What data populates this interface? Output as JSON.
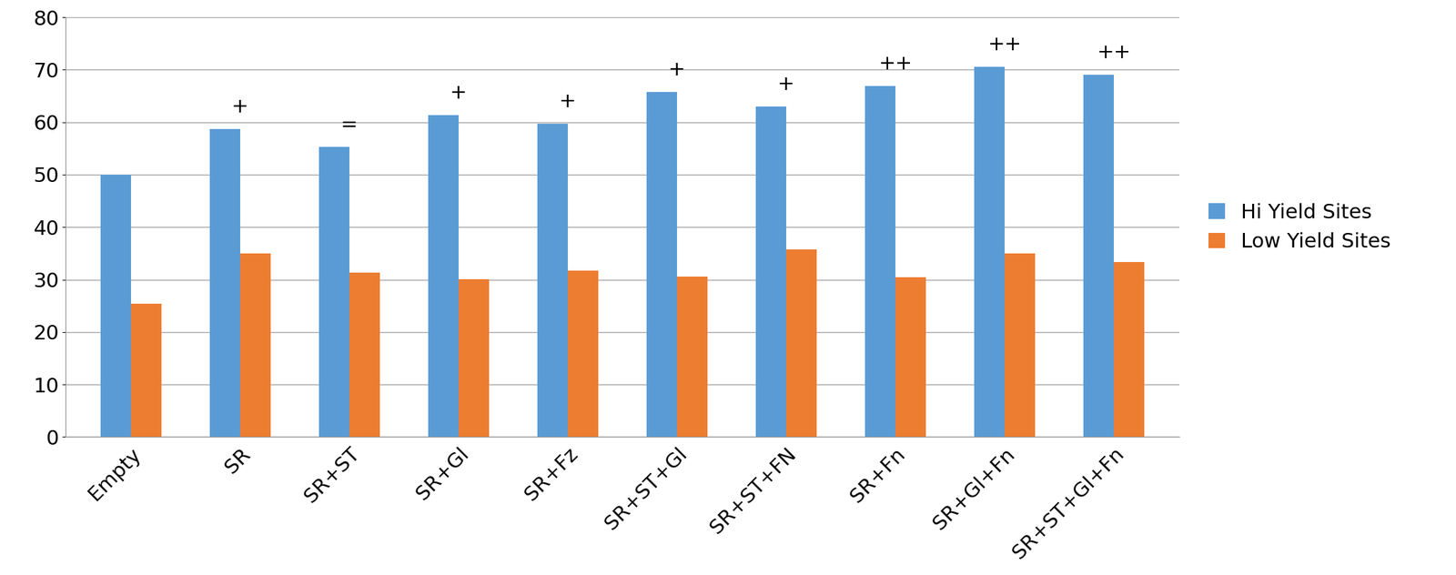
{
  "chart_data": {
    "type": "bar",
    "categories": [
      "Empty",
      "SR",
      "SR+ST",
      "SR+Gl",
      "SR+Fz",
      "SR+ST+Gl",
      "SR+ST+FN",
      "SR+Fn",
      "SR+Gl+Fn",
      "SR+ST+Gl+Fn"
    ],
    "series": [
      {
        "name": "Hi Yield Sites",
        "color": "#5b9bd5",
        "values": [
          50,
          58.7,
          55.3,
          61.4,
          59.7,
          65.8,
          63,
          66.9,
          70.5,
          69
        ]
      },
      {
        "name": "Low Yield Sites",
        "color": "#ed7d31",
        "values": [
          25.4,
          35,
          31.3,
          30.1,
          31.7,
          30.6,
          35.7,
          30.5,
          35,
          33.4
        ]
      }
    ],
    "annotations": [
      null,
      "+",
      "=",
      "+",
      "+",
      "+",
      "+",
      "++",
      "++",
      "++"
    ],
    "ylim": [
      0,
      80
    ],
    "yticks": [
      0,
      10,
      20,
      30,
      40,
      50,
      60,
      70,
      80
    ],
    "grid": true,
    "legend": "right"
  }
}
